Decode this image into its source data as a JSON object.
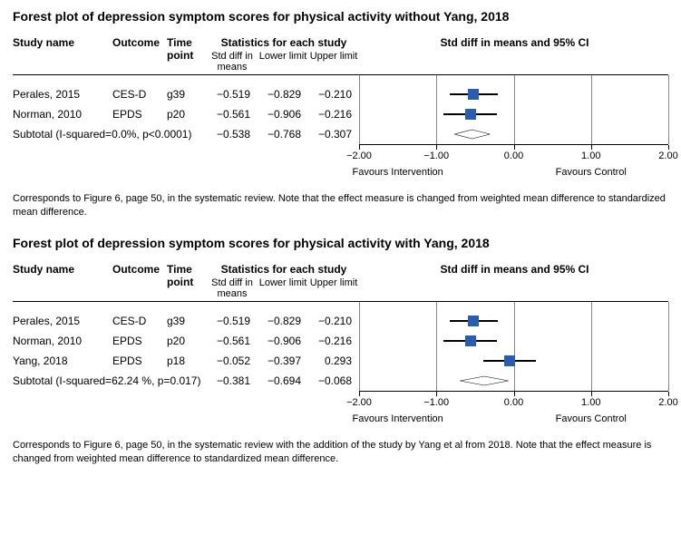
{
  "axis": {
    "min": -2.0,
    "max": 2.0,
    "ticks": [
      -2.0,
      -1.0,
      0.0,
      1.0,
      2.0
    ],
    "tick_labels": [
      "−2.00",
      "−1.00",
      "0.00",
      "1.00",
      "2.00"
    ],
    "favours_left": "Favours Intervention",
    "favours_right": "Favours Control",
    "grid_color": "#888888"
  },
  "colors": {
    "marker": "#2a5db0",
    "line": "#000000",
    "diamond_stroke": "#000000",
    "diamond_fill": "#ffffff"
  },
  "headers": {
    "study": "Study name",
    "outcome": "Outcome",
    "time": "Time point",
    "stats": "Statistics for each study",
    "std": "Std diff in means",
    "lower": "Lower limit",
    "upper": "Upper limit",
    "ci": "Std diff in means and 95% CI"
  },
  "plots": [
    {
      "title": "Forest plot of depression symptom scores for physical activity without Yang, 2018",
      "rows": [
        {
          "study": "Perales, 2015",
          "outcome": "CES-D",
          "time": "g39",
          "std": "−0.519",
          "lower": "−0.829",
          "upper": "−0.210",
          "est": -0.519,
          "lo": -0.829,
          "up": -0.21,
          "weight": 1.0
        },
        {
          "study": "Norman, 2010",
          "outcome": "EPDS",
          "time": "p20",
          "std": "−0.561",
          "lower": "−0.906",
          "upper": "−0.216",
          "est": -0.561,
          "lo": -0.906,
          "up": -0.216,
          "weight": 1.0
        }
      ],
      "subtotal": {
        "label": "Subtotal (I-squared=0.0%, p<0.0001)",
        "std": "−0.538",
        "lower": "−0.768",
        "upper": "−0.307",
        "est": -0.538,
        "lo": -0.768,
        "up": -0.307
      },
      "caption": "Corresponds to Figure 6, page 50, in the systematic review. Note that the effect measure is changed from weighted mean difference to standardized mean difference."
    },
    {
      "title": "Forest plot of depression symptom scores for physical activity with Yang, 2018",
      "rows": [
        {
          "study": "Perales, 2015",
          "outcome": "CES-D",
          "time": "g39",
          "std": "−0.519",
          "lower": "−0.829",
          "upper": "−0.210",
          "est": -0.519,
          "lo": -0.829,
          "up": -0.21,
          "weight": 1.0
        },
        {
          "study": "Norman, 2010",
          "outcome": "EPDS",
          "time": "p20",
          "std": "−0.561",
          "lower": "−0.906",
          "upper": "−0.216",
          "est": -0.561,
          "lo": -0.906,
          "up": -0.216,
          "weight": 1.0
        },
        {
          "study": "Yang, 2018",
          "outcome": "EPDS",
          "time": "p18",
          "std": "−0.052",
          "lower": "−0.397",
          "upper": "0.293",
          "est": -0.052,
          "lo": -0.397,
          "up": 0.293,
          "weight": 1.0
        }
      ],
      "subtotal": {
        "label": "Subtotal (I-squared=62.24 %, p=0.017)",
        "std": "−0.381",
        "lower": "−0.694",
        "upper": "−0.068",
        "est": -0.381,
        "lo": -0.694,
        "up": -0.068
      },
      "caption": "Corresponds to Figure 6, page 50, in the systematic review with the addition of the study by Yang et al from 2018. Note that the effect measure is changed from weighted mean difference to standardized mean difference."
    }
  ]
}
